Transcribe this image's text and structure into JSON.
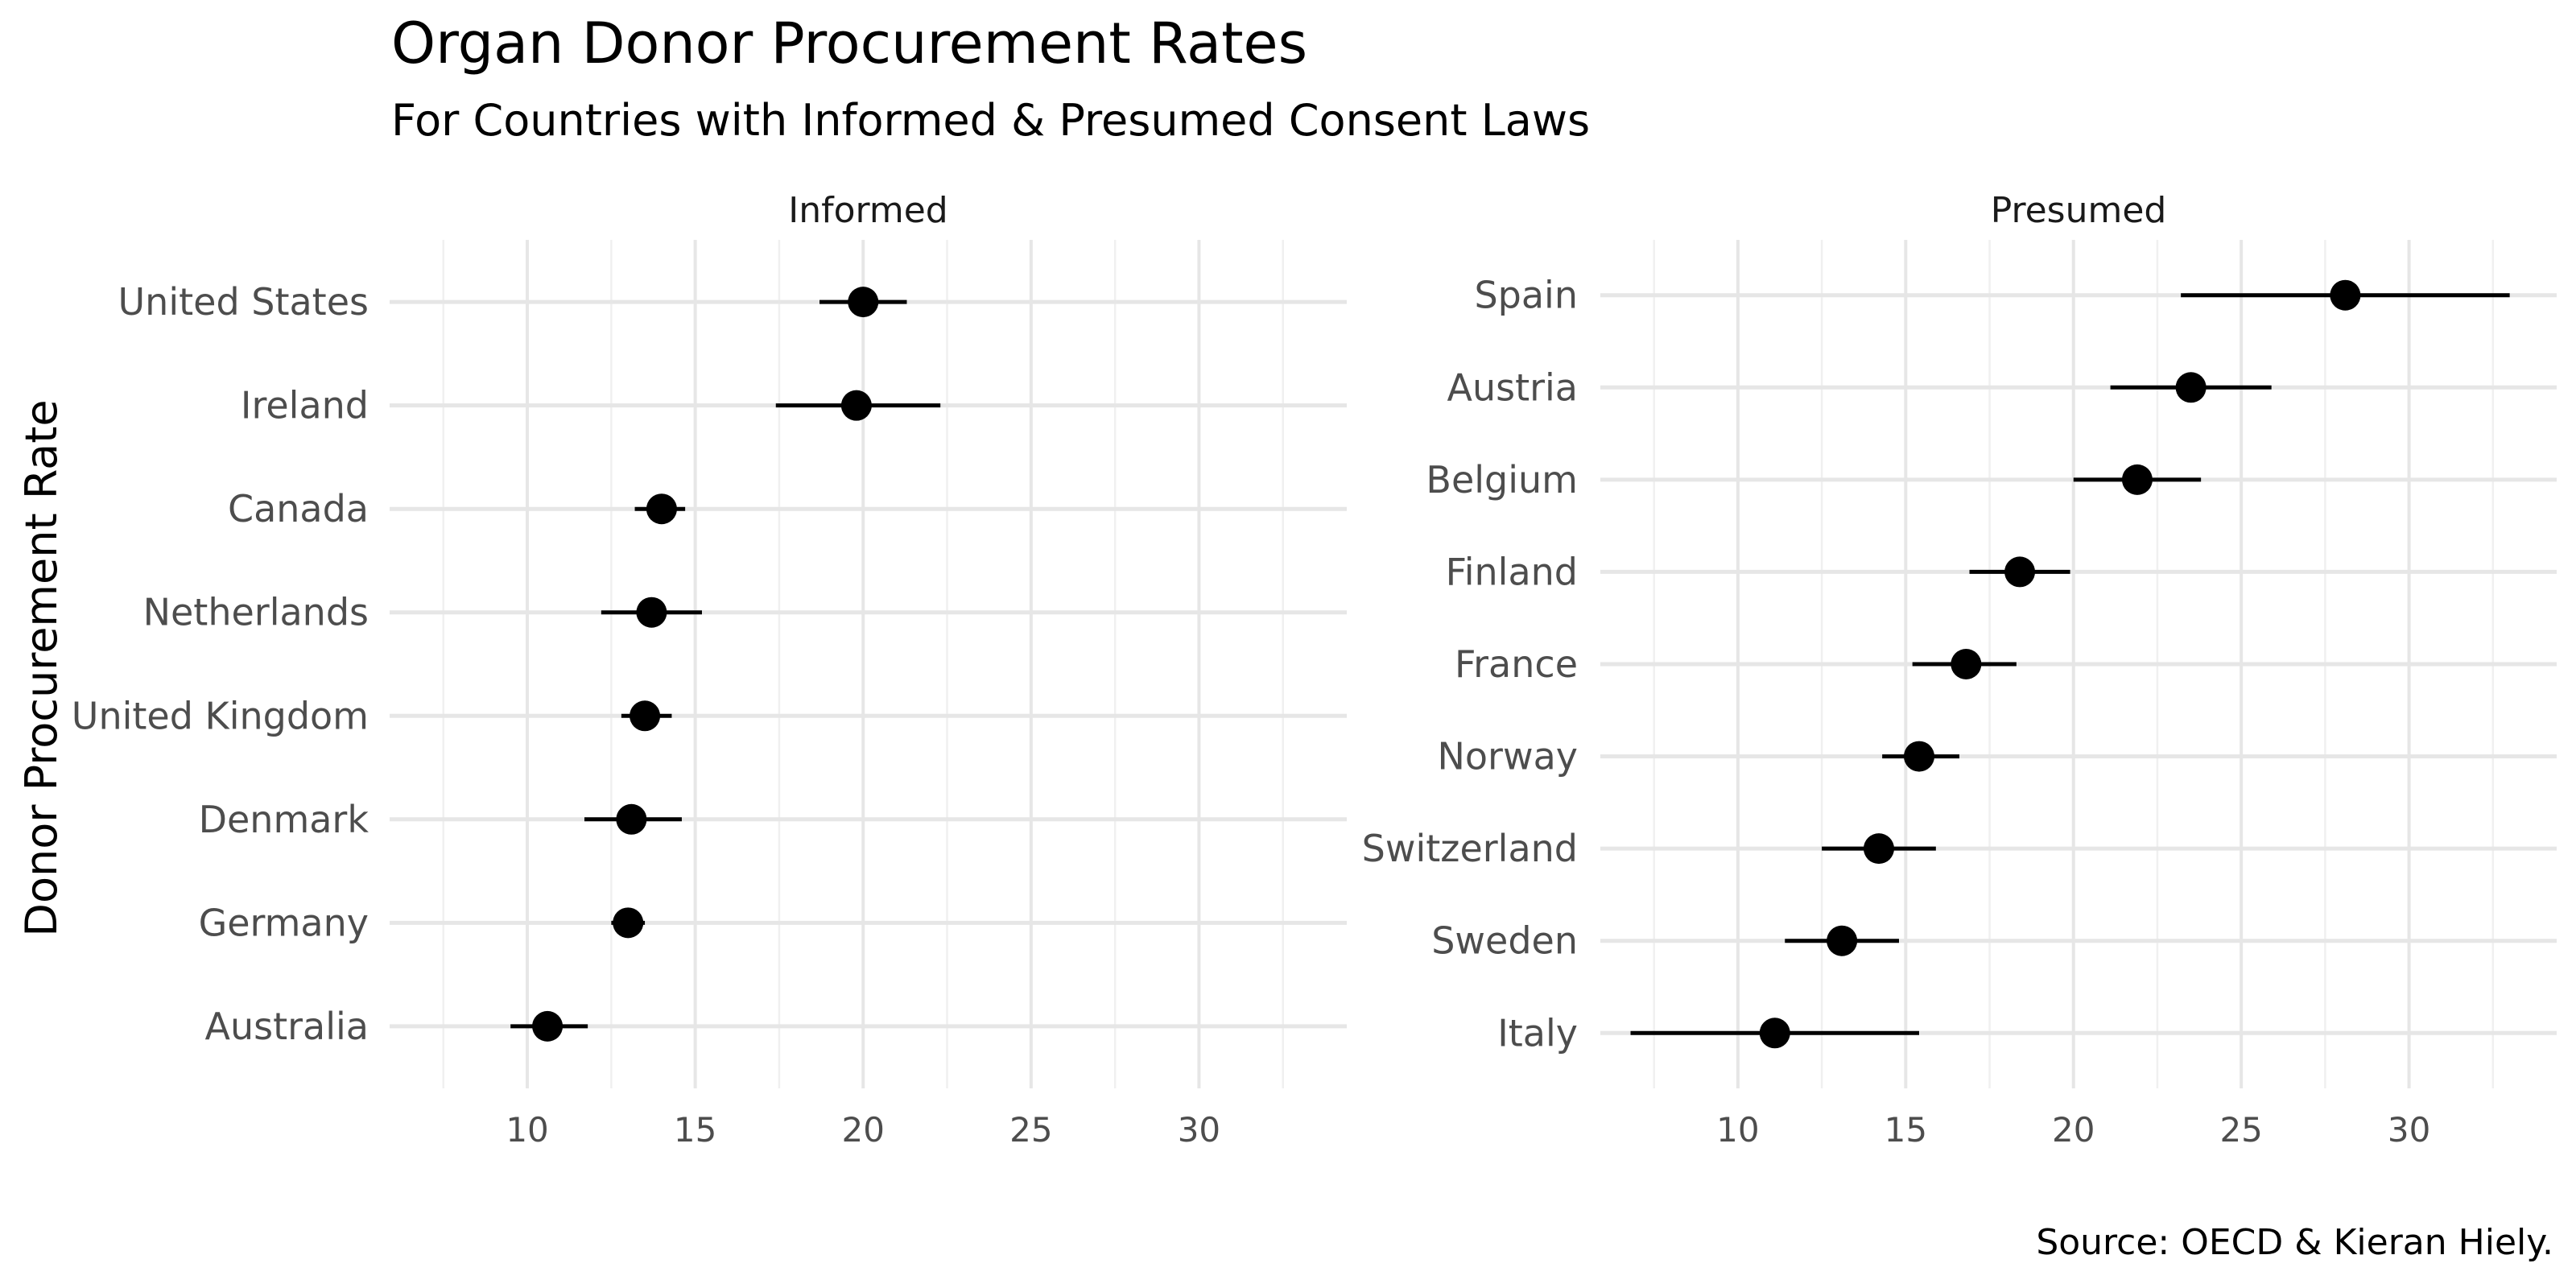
{
  "chart_data": {
    "type": "scatter",
    "title": "Organ Donor Procurement Rates",
    "subtitle": "For Countries with Informed & Presumed Consent Laws",
    "ylabel": "Donor Procurement Rate",
    "caption": "Source: OECD & Kieran Hiely.",
    "xlim": [
      5.9,
      34.4
    ],
    "x_ticks": [
      10,
      15,
      20,
      25,
      30
    ],
    "grid": true,
    "panels": [
      {
        "name": "Informed",
        "countries": [
          "United States",
          "Ireland",
          "Canada",
          "Netherlands",
          "United Kingdom",
          "Denmark",
          "Germany",
          "Australia"
        ],
        "means": [
          20.0,
          19.8,
          14.0,
          13.7,
          13.5,
          13.1,
          13.0,
          10.6
        ],
        "low": [
          18.7,
          17.4,
          13.2,
          12.2,
          12.8,
          11.7,
          12.5,
          9.5
        ],
        "high": [
          21.3,
          22.3,
          14.7,
          15.2,
          14.3,
          14.6,
          13.5,
          11.8
        ]
      },
      {
        "name": "Presumed",
        "countries": [
          "Spain",
          "Austria",
          "Belgium",
          "Finland",
          "France",
          "Norway",
          "Switzerland",
          "Sweden",
          "Italy"
        ],
        "means": [
          28.1,
          23.5,
          21.9,
          18.4,
          16.8,
          15.4,
          14.2,
          13.1,
          11.1
        ],
        "low": [
          23.2,
          21.1,
          20.0,
          16.9,
          15.2,
          14.3,
          12.5,
          11.4,
          6.8
        ],
        "high": [
          33.0,
          25.9,
          23.8,
          19.9,
          18.3,
          16.6,
          15.9,
          14.8,
          15.4
        ]
      }
    ]
  }
}
